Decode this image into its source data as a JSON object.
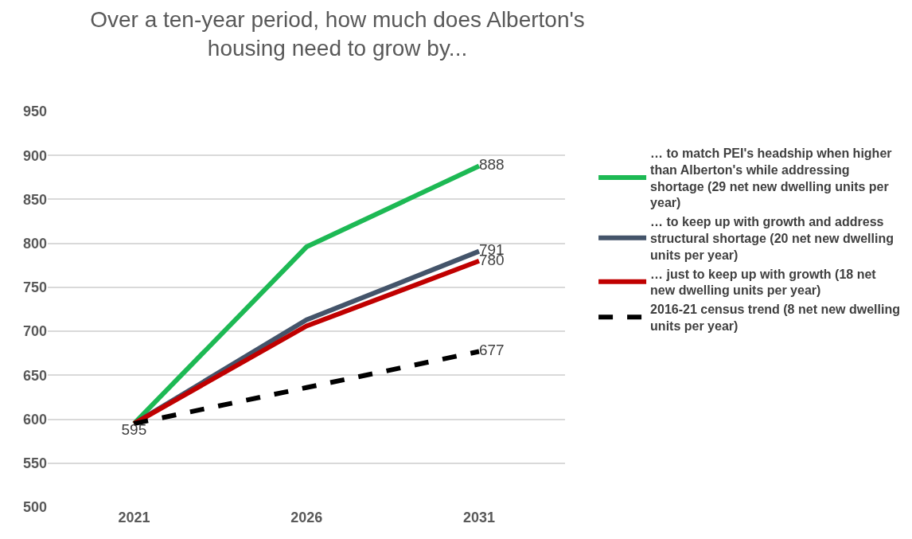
{
  "chart_data": {
    "type": "line",
    "title": "Over a ten-year period, how much does Alberton's housing need to grow by...",
    "categories": [
      "2021",
      "2026",
      "2031"
    ],
    "series": [
      {
        "name": "… to match PEI's headship when higher than Alberton's while addressing shortage (29 net new dwelling units per year)",
        "color": "#1db954",
        "values": [
          595,
          796,
          888
        ],
        "value_labels": [
          null,
          null,
          "888"
        ]
      },
      {
        "name": "… to keep up with growth and address structural shortage (20 net new dwelling units per year)",
        "color": "#44546a",
        "values": [
          595,
          713,
          791
        ],
        "value_labels": [
          null,
          null,
          "791"
        ]
      },
      {
        "name": "… just to keep up with growth (18 net new dwelling units per year)",
        "color": "#c00000",
        "values": [
          595,
          706,
          780
        ],
        "value_labels": [
          null,
          null,
          "780"
        ]
      },
      {
        "name": "2016-21 census trend (8 net new dwelling units per year)",
        "color": "#000000",
        "values": [
          595,
          636,
          677
        ],
        "value_labels": [
          "595",
          null,
          "677"
        ],
        "line_style": "dashed"
      }
    ],
    "ylim": [
      500,
      950
    ],
    "yticks": [
      500,
      550,
      600,
      650,
      700,
      750,
      800,
      850,
      900,
      950
    ],
    "grid": "y",
    "legend": "right",
    "marker": "none"
  }
}
